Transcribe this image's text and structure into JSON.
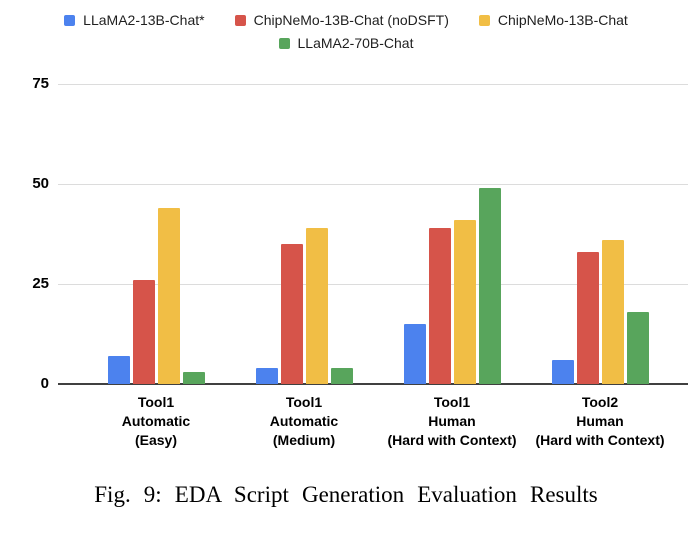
{
  "figure": {
    "caption": "Fig. 9: EDA Script Generation Evaluation Results"
  },
  "chart_data": {
    "type": "bar",
    "title": "",
    "xlabel": "",
    "ylabel": "",
    "categories": [
      [
        "Tool1",
        "Automatic",
        "(Easy)"
      ],
      [
        "Tool1",
        "Automatic",
        "(Medium)"
      ],
      [
        "Tool1",
        "Human",
        "(Hard with Context)"
      ],
      [
        "Tool2",
        "Human",
        "(Hard with Context)"
      ]
    ],
    "series": [
      {
        "name": "LLaMA2-13B-Chat*",
        "color": "#4C82EE",
        "values": [
          7,
          4,
          15,
          6
        ]
      },
      {
        "name": "ChipNeMo-13B-Chat (noDSFT)",
        "color": "#D6544A",
        "values": [
          26,
          35,
          39,
          33
        ]
      },
      {
        "name": "ChipNeMo-13B-Chat",
        "color": "#F1BE45",
        "values": [
          44,
          39,
          41,
          36
        ]
      },
      {
        "name": "LLaMA2-70B-Chat",
        "color": "#58A55C",
        "values": [
          3,
          4,
          49,
          18
        ]
      }
    ],
    "ylim": [
      0,
      75
    ],
    "yticks": [
      0,
      25,
      50,
      75
    ],
    "grid": true,
    "legend_position": "top",
    "legend_rows": [
      [
        0,
        1,
        2
      ],
      [
        3
      ]
    ],
    "axis_colors": {
      "gridline": "#dcdcdc",
      "baseline": "#404040",
      "tick_text": "#000000"
    }
  }
}
